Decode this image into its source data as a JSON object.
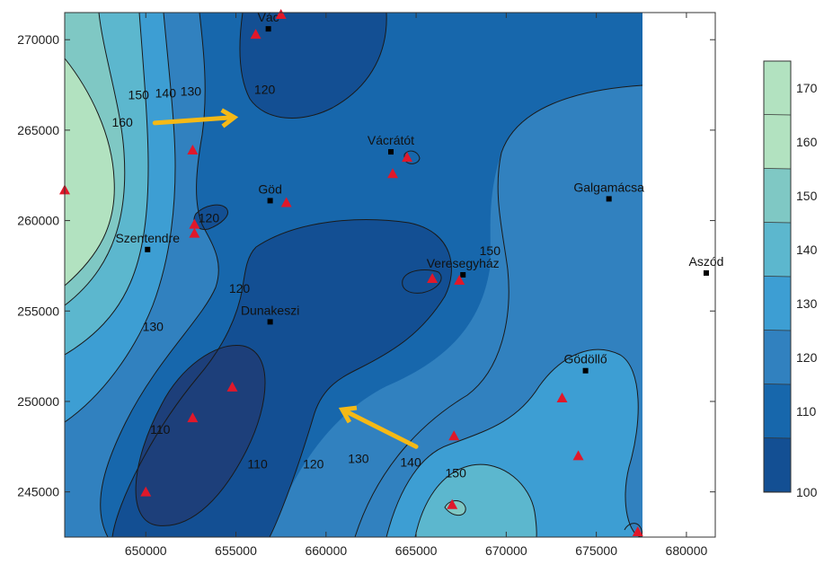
{
  "colors": {
    "c100": "#1d3f7a",
    "c110": "#134f93",
    "c120": "#1767ac",
    "c130": "#3181bf",
    "c140": "#3d9ed3",
    "c150": "#5cb7ce",
    "c160": "#7fc8c4",
    "c170": "#b2e2c0",
    "sample": "#e0182a",
    "arrow": "#f5b916",
    "contour": "#1a1a1a"
  },
  "axes": {
    "x_range": [
      645500,
      677500
    ],
    "y_range": [
      242500,
      271500
    ],
    "x_ticks": [
      "650000",
      "655000",
      "660000",
      "665000",
      "670000",
      "675000",
      "680000"
    ],
    "y_ticks": [
      "270000",
      "265000",
      "260000",
      "255000",
      "250000",
      "245000"
    ]
  },
  "legend": {
    "levels": [
      "170",
      "160",
      "150",
      "140",
      "130",
      "120",
      "110",
      "100"
    ]
  },
  "places": [
    {
      "name": "Vác",
      "x": 656800,
      "y": 270600,
      "label_dx": 0
    },
    {
      "name": "Vácrátót",
      "x": 663600,
      "y": 263800,
      "label_dx": 0
    },
    {
      "name": "Göd",
      "x": 656900,
      "y": 261100,
      "label_dx": 0
    },
    {
      "name": "Galgamácsa",
      "x": 675700,
      "y": 261200,
      "label_dx": 0
    },
    {
      "name": "Szentendre",
      "x": 650100,
      "y": 258400,
      "label_dx": 0
    },
    {
      "name": "Veresegyház",
      "x": 667600,
      "y": 257000,
      "label_dx": 0
    },
    {
      "name": "Aszód",
      "x": 681100,
      "y": 257100,
      "label_dx": 0
    },
    {
      "name": "Dunakeszi",
      "x": 656900,
      "y": 254400,
      "label_dx": 0
    },
    {
      "name": "Gödöllő",
      "x": 674400,
      "y": 251700,
      "label_dx": 0
    }
  ],
  "samples": [
    {
      "x": 657500,
      "y": 271400
    },
    {
      "x": 656100,
      "y": 270300
    },
    {
      "x": 645500,
      "y": 261700
    },
    {
      "x": 652600,
      "y": 263900
    },
    {
      "x": 664500,
      "y": 263500
    },
    {
      "x": 663700,
      "y": 262600
    },
    {
      "x": 657800,
      "y": 261000
    },
    {
      "x": 652700,
      "y": 259800
    },
    {
      "x": 652700,
      "y": 259300
    },
    {
      "x": 665900,
      "y": 256800
    },
    {
      "x": 667400,
      "y": 256700
    },
    {
      "x": 654800,
      "y": 250800
    },
    {
      "x": 652600,
      "y": 249100
    },
    {
      "x": 673100,
      "y": 250200
    },
    {
      "x": 667100,
      "y": 248100
    },
    {
      "x": 674000,
      "y": 247000
    },
    {
      "x": 650000,
      "y": 245000
    },
    {
      "x": 667000,
      "y": 244300
    },
    {
      "x": 677300,
      "y": 242800
    }
  ],
  "contour_labels": [
    {
      "text": "150",
      "x": 649600,
      "y": 266700
    },
    {
      "text": "140",
      "x": 651100,
      "y": 266800
    },
    {
      "text": "130",
      "x": 652500,
      "y": 266900
    },
    {
      "text": "160",
      "x": 648700,
      "y": 265200
    },
    {
      "text": "120",
      "x": 656600,
      "y": 267000
    },
    {
      "text": "120",
      "x": 653500,
      "y": 259900
    },
    {
      "text": "120",
      "x": 655200,
      "y": 256000
    },
    {
      "text": "130",
      "x": 650400,
      "y": 253900
    },
    {
      "text": "110",
      "x": 650800,
      "y": 248200
    },
    {
      "text": "110",
      "x": 656200,
      "y": 246300
    },
    {
      "text": "120",
      "x": 659300,
      "y": 246300
    },
    {
      "text": "130",
      "x": 661800,
      "y": 246600
    },
    {
      "text": "140",
      "x": 664700,
      "y": 246400
    },
    {
      "text": "150",
      "x": 667200,
      "y": 245800
    },
    {
      "text": "150",
      "x": 669100,
      "y": 258100
    }
  ],
  "arrows": [
    {
      "from": [
        650500,
        265400
      ],
      "to": [
        654800,
        265700
      ]
    },
    {
      "from": [
        665000,
        247500
      ],
      "to": [
        661000,
        249500
      ]
    }
  ]
}
